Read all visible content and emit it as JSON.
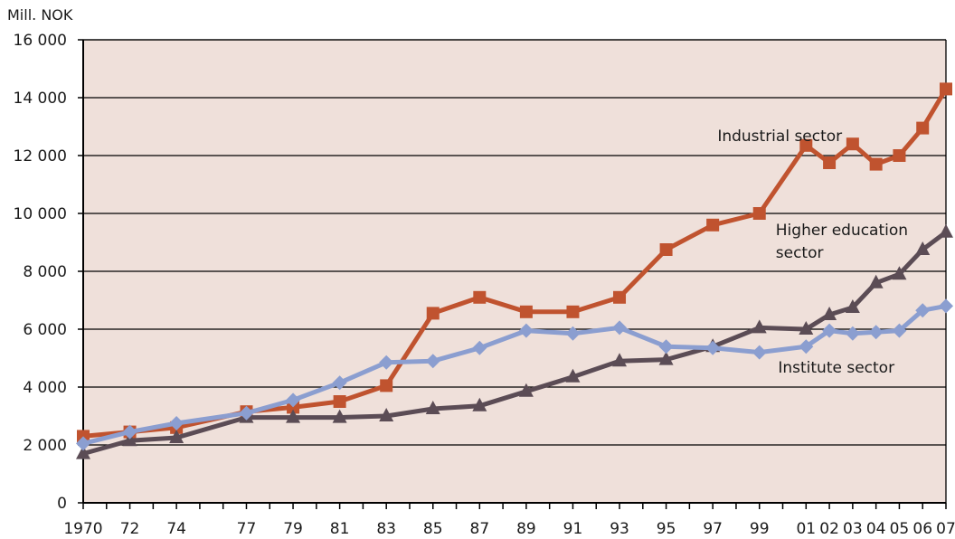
{
  "chart_data": {
    "type": "line",
    "title": "",
    "unit_label": "Mill. NOK",
    "xlabel": "",
    "ylabel": "",
    "ylim": [
      0,
      16000
    ],
    "y_ticks": [
      0,
      2000,
      4000,
      6000,
      8000,
      10000,
      12000,
      14000,
      16000
    ],
    "y_tick_labels": [
      "0",
      "2 000",
      "4 000",
      "6 000",
      "8 000",
      "10 000",
      "12 000",
      "14 000",
      "16 000"
    ],
    "xlim": [
      1970,
      2007
    ],
    "x_ticks": [
      1970,
      1971,
      1972,
      1973,
      1974,
      1975,
      1976,
      1977,
      1978,
      1979,
      1980,
      1981,
      1982,
      1983,
      1984,
      1985,
      1986,
      1987,
      1988,
      1989,
      1990,
      1991,
      1992,
      1993,
      1994,
      1995,
      1996,
      1997,
      1998,
      1999,
      2000,
      2001,
      2002,
      2003,
      2004,
      2005,
      2006,
      2007
    ],
    "x_tick_labels": [
      {
        "x": 1970,
        "label": "1970"
      },
      {
        "x": 1972,
        "label": "72"
      },
      {
        "x": 1974,
        "label": "74"
      },
      {
        "x": 1977,
        "label": "77"
      },
      {
        "x": 1979,
        "label": "79"
      },
      {
        "x": 1981,
        "label": "81"
      },
      {
        "x": 1983,
        "label": "83"
      },
      {
        "x": 1985,
        "label": "85"
      },
      {
        "x": 1987,
        "label": "87"
      },
      {
        "x": 1989,
        "label": "89"
      },
      {
        "x": 1991,
        "label": "91"
      },
      {
        "x": 1993,
        "label": "93"
      },
      {
        "x": 1995,
        "label": "95"
      },
      {
        "x": 1997,
        "label": "97"
      },
      {
        "x": 1999,
        "label": "99"
      },
      {
        "x": 2001,
        "label": "01"
      },
      {
        "x": 2002,
        "label": "02"
      },
      {
        "x": 2003,
        "label": "03"
      },
      {
        "x": 2004,
        "label": "04"
      },
      {
        "x": 2005,
        "label": "05"
      },
      {
        "x": 2006,
        "label": "06"
      },
      {
        "x": 2007,
        "label": "07"
      }
    ],
    "grid": "horizontal",
    "plot_background": "#efe0da",
    "series": [
      {
        "name": "Industrial sector",
        "color": "#c0532f",
        "marker": "square",
        "points": [
          {
            "x": 1970,
            "y": 2300
          },
          {
            "x": 1972,
            "y": 2450
          },
          {
            "x": 1974,
            "y": 2600
          },
          {
            "x": 1977,
            "y": 3150
          },
          {
            "x": 1979,
            "y": 3300
          },
          {
            "x": 1981,
            "y": 3500
          },
          {
            "x": 1983,
            "y": 4050
          },
          {
            "x": 1985,
            "y": 6550
          },
          {
            "x": 1987,
            "y": 7100
          },
          {
            "x": 1989,
            "y": 6600
          },
          {
            "x": 1991,
            "y": 6600
          },
          {
            "x": 1993,
            "y": 7100
          },
          {
            "x": 1995,
            "y": 8750
          },
          {
            "x": 1997,
            "y": 9600
          },
          {
            "x": 1999,
            "y": 10000
          },
          {
            "x": 2001,
            "y": 12350
          },
          {
            "x": 2002,
            "y": 11750
          },
          {
            "x": 2003,
            "y": 12400
          },
          {
            "x": 2004,
            "y": 11700
          },
          {
            "x": 2005,
            "y": 12000
          },
          {
            "x": 2006,
            "y": 12950
          },
          {
            "x": 2007,
            "y": 14300
          }
        ]
      },
      {
        "name": "Higher education sector",
        "color": "#5b4c55",
        "marker": "triangle",
        "points": [
          {
            "x": 1970,
            "y": 1700
          },
          {
            "x": 1972,
            "y": 2150
          },
          {
            "x": 1974,
            "y": 2250
          },
          {
            "x": 1977,
            "y": 2950
          },
          {
            "x": 1979,
            "y": 2950
          },
          {
            "x": 1981,
            "y": 2950
          },
          {
            "x": 1983,
            "y": 3000
          },
          {
            "x": 1985,
            "y": 3250
          },
          {
            "x": 1987,
            "y": 3350
          },
          {
            "x": 1989,
            "y": 3850
          },
          {
            "x": 1991,
            "y": 4350
          },
          {
            "x": 1993,
            "y": 4900
          },
          {
            "x": 1995,
            "y": 4950
          },
          {
            "x": 1997,
            "y": 5400
          },
          {
            "x": 1999,
            "y": 6050
          },
          {
            "x": 2001,
            "y": 6000
          },
          {
            "x": 2002,
            "y": 6500
          },
          {
            "x": 2003,
            "y": 6750
          },
          {
            "x": 2004,
            "y": 7600
          },
          {
            "x": 2005,
            "y": 7900
          },
          {
            "x": 2006,
            "y": 8750
          },
          {
            "x": 2007,
            "y": 9350
          }
        ]
      },
      {
        "name": "Institute sector",
        "color": "#8b9ed0",
        "marker": "diamond",
        "points": [
          {
            "x": 1970,
            "y": 2050
          },
          {
            "x": 1972,
            "y": 2450
          },
          {
            "x": 1974,
            "y": 2750
          },
          {
            "x": 1977,
            "y": 3100
          },
          {
            "x": 1979,
            "y": 3550
          },
          {
            "x": 1981,
            "y": 4150
          },
          {
            "x": 1983,
            "y": 4850
          },
          {
            "x": 1985,
            "y": 4900
          },
          {
            "x": 1987,
            "y": 5350
          },
          {
            "x": 1989,
            "y": 5950
          },
          {
            "x": 1991,
            "y": 5850
          },
          {
            "x": 1993,
            "y": 6050
          },
          {
            "x": 1995,
            "y": 5400
          },
          {
            "x": 1997,
            "y": 5350
          },
          {
            "x": 1999,
            "y": 5200
          },
          {
            "x": 2001,
            "y": 5400
          },
          {
            "x": 2002,
            "y": 5950
          },
          {
            "x": 2003,
            "y": 5850
          },
          {
            "x": 2004,
            "y": 5900
          },
          {
            "x": 2005,
            "y": 5950
          },
          {
            "x": 2006,
            "y": 6650
          },
          {
            "x": 2007,
            "y": 6800
          }
        ]
      }
    ],
    "annotations": [
      {
        "series": "Industrial sector",
        "lines": [
          "Industrial sector"
        ],
        "anchor_x": 1997.2,
        "anchor_y": 12500
      },
      {
        "series": "Higher education sector",
        "lines": [
          "Higher education",
          "sector"
        ],
        "anchor_x": 1999.7,
        "anchor_y": 9250
      },
      {
        "series": "Institute sector",
        "lines": [
          "Institute sector"
        ],
        "anchor_x": 1999.8,
        "anchor_y": 4500
      }
    ]
  }
}
